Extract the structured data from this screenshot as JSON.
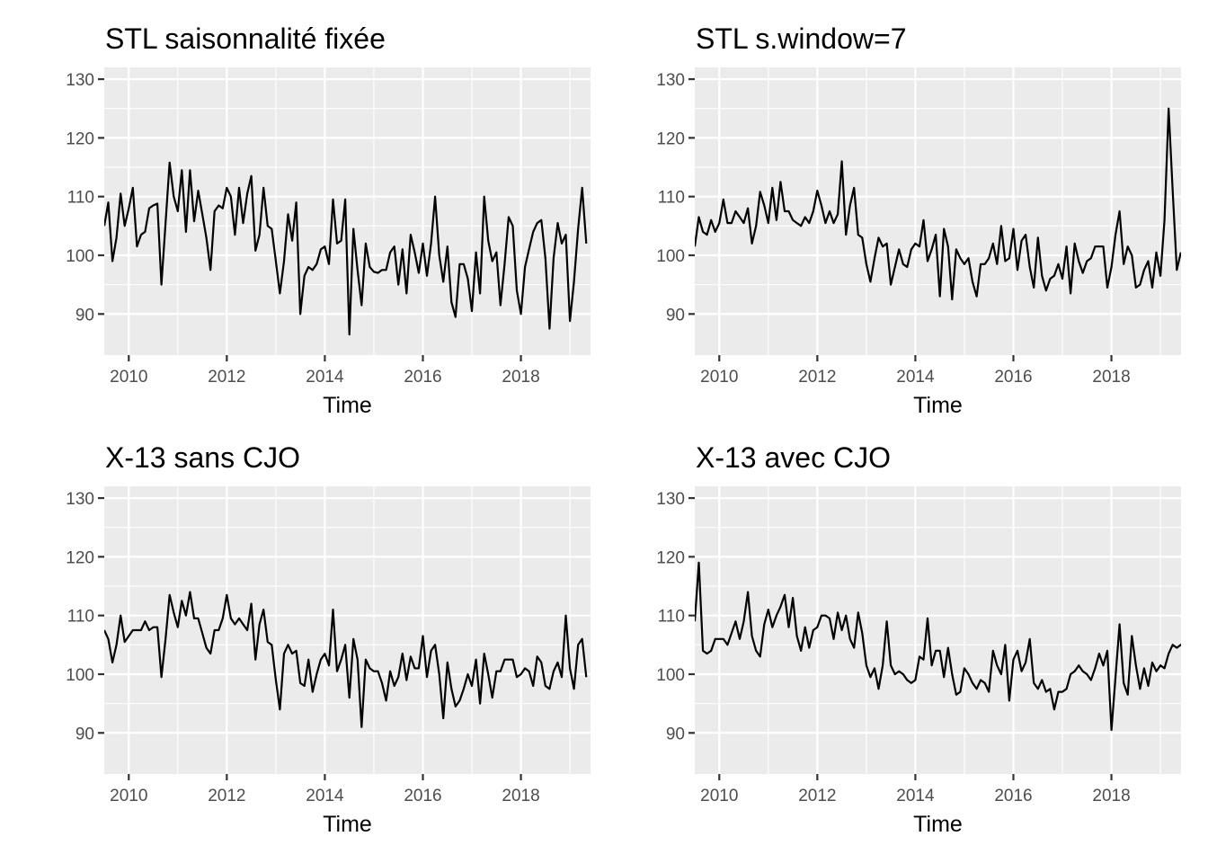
{
  "chart_data": [
    {
      "type": "line",
      "title": "STL saisonnalité fixée",
      "xlabel": "Time",
      "ylabel": "",
      "xlim": [
        2009.5,
        2019.42
      ],
      "ylim": [
        83,
        132
      ],
      "x_ticks": [
        2010,
        2012,
        2014,
        2016,
        2018
      ],
      "x_tick_labels": [
        "2010",
        "2012",
        "2014",
        "2016",
        "2018"
      ],
      "y_ticks": [
        90,
        100,
        110,
        120,
        130
      ],
      "y_tick_labels": [
        "90",
        "100",
        "110",
        "120",
        "130"
      ],
      "grid": true,
      "x_start": 2009.5,
      "x_step": 0.0833333,
      "values": [
        105,
        109,
        99,
        103,
        110.5,
        105,
        108,
        111.5,
        101.5,
        103.5,
        104,
        108,
        108.5,
        108.8,
        95,
        105.5,
        115.8,
        110,
        107.5,
        114.5,
        104,
        114.5,
        105.8,
        111,
        107,
        103,
        97.5,
        107.5,
        108.5,
        108,
        111.5,
        110,
        103.5,
        111.5,
        105.5,
        110.5,
        113.5,
        100.8,
        103.5,
        111.5,
        105,
        104.5,
        99,
        93.5,
        99,
        107,
        102.5,
        109,
        90,
        96.5,
        98,
        97.5,
        98.5,
        101,
        101.5,
        98.5,
        109.5,
        102,
        102.5,
        109.5,
        86.5,
        104.5,
        97.5,
        91.5,
        102,
        98,
        97.2,
        97,
        97.5,
        97.5,
        100.5,
        101.5,
        95,
        101,
        93.5,
        103.5,
        100.5,
        97,
        102,
        96.5,
        102,
        110,
        100,
        95.5,
        101.5,
        92,
        89.5,
        98.5,
        98.5,
        96,
        90.5,
        100.5,
        93.5,
        110,
        102.5,
        99,
        100.5,
        91.5,
        98.5,
        106.5,
        105,
        94,
        90,
        98,
        101,
        104,
        105.5,
        106,
        99.5,
        87.5,
        99.5,
        105.5,
        102,
        103.5,
        88.8,
        95.5,
        104.5,
        111.5,
        102
      ]
    },
    {
      "type": "line",
      "title": "STL s.window=7",
      "xlabel": "Time",
      "ylabel": "",
      "xlim": [
        2009.5,
        2019.42
      ],
      "ylim": [
        83,
        132
      ],
      "x_ticks": [
        2010,
        2012,
        2014,
        2016,
        2018
      ],
      "x_tick_labels": [
        "2010",
        "2012",
        "2014",
        "2016",
        "2018"
      ],
      "y_ticks": [
        90,
        100,
        110,
        120,
        130
      ],
      "y_tick_labels": [
        "90",
        "100",
        "110",
        "120",
        "130"
      ],
      "grid": true,
      "x_start": 2009.5,
      "x_step": 0.0833333,
      "values": [
        101.5,
        106.5,
        104,
        103.5,
        106,
        104,
        105.5,
        109.5,
        105.5,
        105.5,
        107.5,
        106.5,
        105.5,
        108,
        102,
        105,
        110.8,
        108.5,
        105.5,
        111.5,
        106,
        112.5,
        107.5,
        107.5,
        106,
        105.5,
        105,
        106.5,
        105.5,
        107.5,
        111,
        108.5,
        105.5,
        107.5,
        105.5,
        107,
        116,
        103.5,
        108.5,
        111.5,
        103.5,
        103,
        98.5,
        95.5,
        99.5,
        103,
        101.5,
        102,
        95,
        98,
        101,
        98.5,
        98,
        101,
        102,
        101.5,
        106,
        99,
        101,
        103.5,
        93,
        104.5,
        101.5,
        92.5,
        101,
        99.5,
        98.5,
        99.5,
        95.5,
        93,
        98.5,
        98.5,
        99.5,
        102,
        98.5,
        105,
        99,
        99.5,
        104.5,
        97.5,
        102.5,
        103.5,
        98,
        94.5,
        103,
        96.5,
        94,
        96,
        96.5,
        98.5,
        96,
        101.5,
        93.5,
        102,
        99,
        97,
        99,
        99.5,
        101.5,
        101.5,
        101.5,
        94.5,
        98,
        103.5,
        107.5,
        98.5,
        101.5,
        100,
        94.5,
        95,
        97.5,
        99,
        94.5,
        100.5,
        96.5,
        106,
        125,
        111,
        97.5,
        100.5
      ]
    },
    {
      "type": "line",
      "title": "X-13 sans CJO",
      "xlabel": "Time",
      "ylabel": "",
      "xlim": [
        2009.5,
        2019.42
      ],
      "ylim": [
        83,
        132
      ],
      "x_ticks": [
        2010,
        2012,
        2014,
        2016,
        2018
      ],
      "x_tick_labels": [
        "2010",
        "2012",
        "2014",
        "2016",
        "2018"
      ],
      "y_ticks": [
        90,
        100,
        110,
        120,
        130
      ],
      "y_tick_labels": [
        "90",
        "100",
        "110",
        "120",
        "130"
      ],
      "grid": true,
      "x_start": 2009.5,
      "x_step": 0.0833333,
      "values": [
        107.5,
        106,
        102,
        105,
        110,
        105.5,
        106.5,
        107.5,
        107.5,
        107.5,
        109,
        107.5,
        108,
        108,
        99.5,
        106,
        113.5,
        110.5,
        108,
        112.5,
        110,
        114,
        109.5,
        109.5,
        107,
        104.5,
        103.5,
        107.5,
        107.5,
        109.5,
        113.5,
        109.5,
        108.5,
        109.5,
        108.5,
        107.5,
        112,
        102.5,
        108.5,
        111,
        105.5,
        105,
        99,
        94,
        103.5,
        105,
        103.5,
        104,
        98.5,
        98,
        102.5,
        97,
        100,
        102.5,
        103.5,
        101.5,
        111,
        100.5,
        102.5,
        105,
        96,
        106,
        102.5,
        91,
        102.5,
        101,
        100.5,
        100.5,
        98.5,
        95.5,
        100.5,
        98,
        99.5,
        103.5,
        99,
        103,
        101,
        101,
        106.5,
        99.5,
        104,
        105,
        100,
        92.5,
        102,
        97.5,
        94.5,
        95.5,
        97.5,
        100,
        98,
        102.5,
        95,
        103.5,
        100,
        96,
        100.5,
        100.5,
        102.5,
        102.5,
        102.5,
        99.5,
        100,
        101,
        100.5,
        98,
        103,
        102,
        98,
        97.5,
        100.5,
        102,
        99.5,
        110,
        101,
        97.5,
        105,
        106,
        99.5
      ]
    },
    {
      "type": "line",
      "title": "X-13 avec CJO",
      "xlabel": "Time",
      "ylabel": "",
      "xlim": [
        2009.5,
        2019.42
      ],
      "ylim": [
        83,
        132
      ],
      "x_ticks": [
        2010,
        2012,
        2014,
        2016,
        2018
      ],
      "x_tick_labels": [
        "2010",
        "2012",
        "2014",
        "2016",
        "2018"
      ],
      "y_ticks": [
        90,
        100,
        110,
        120,
        130
      ],
      "y_tick_labels": [
        "90",
        "100",
        "110",
        "120",
        "130"
      ],
      "grid": true,
      "x_start": 2009.5,
      "x_step": 0.0833333,
      "values": [
        109,
        119,
        104,
        103.5,
        104,
        106,
        106,
        106,
        105,
        107,
        109,
        106,
        109,
        114,
        106.5,
        104,
        103,
        108.5,
        111,
        108,
        110,
        111.5,
        113.5,
        108,
        113,
        106.5,
        104,
        108,
        104.5,
        107.5,
        108,
        110,
        110,
        109.5,
        106,
        110.5,
        107.5,
        110,
        106,
        104.5,
        110.5,
        107,
        101.5,
        99.5,
        101,
        97.5,
        101.5,
        109,
        101.5,
        100,
        100.5,
        100,
        99,
        98.5,
        99,
        103,
        102.5,
        109.5,
        101.5,
        104,
        104,
        99.5,
        104.5,
        100,
        96.5,
        97,
        101,
        100,
        98.5,
        97.5,
        99,
        98.5,
        97,
        104,
        101.5,
        100,
        105,
        95.5,
        102.5,
        104,
        100.5,
        102,
        106,
        98.5,
        97.5,
        99,
        97,
        97.5,
        94,
        97,
        97,
        97.5,
        100,
        100.5,
        101.5,
        100.5,
        100,
        99,
        101,
        103.5,
        101.5,
        104,
        90.5,
        99.5,
        108.5,
        98.5,
        96.5,
        106.5,
        101.5,
        97.5,
        101,
        98,
        102,
        100.5,
        101.5,
        101,
        103.5,
        105,
        104.5,
        105,
        104.5
      ]
    }
  ]
}
